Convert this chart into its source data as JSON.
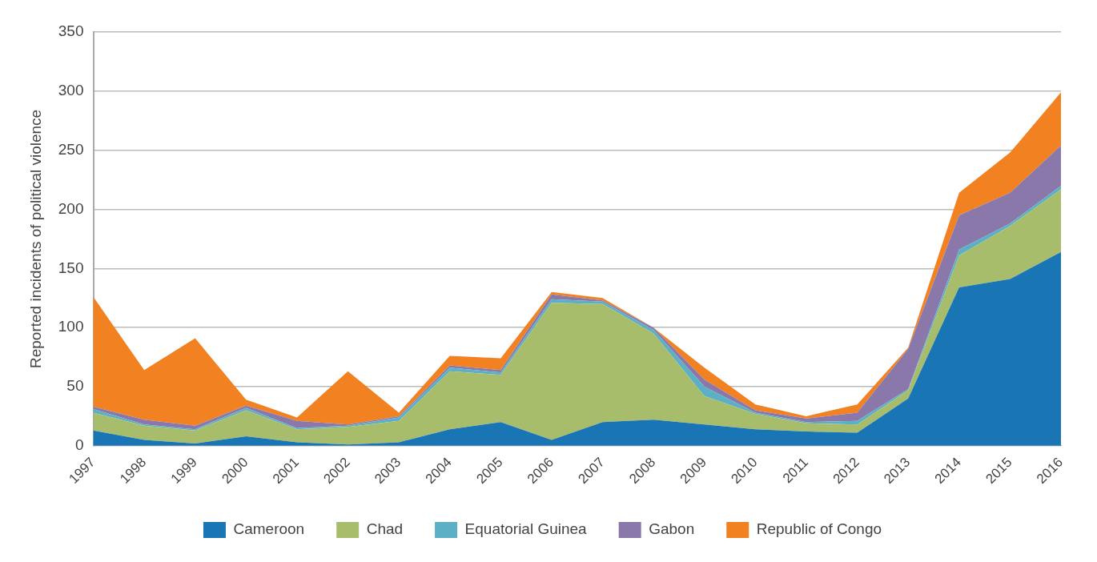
{
  "chart_data": {
    "type": "area",
    "stacked": true,
    "ylabel": "Reported incidents of political violence",
    "categories": [
      "1997",
      "1998",
      "1999",
      "2000",
      "2001",
      "2002",
      "2003",
      "2004",
      "2005",
      "2006",
      "2007",
      "2008",
      "2009",
      "2010",
      "2011",
      "2012",
      "2013",
      "2014",
      "2015",
      "2016"
    ],
    "series": [
      {
        "name": "Cameroon",
        "color": "#1a75b5",
        "values": [
          13,
          5,
          2,
          8,
          3,
          1,
          3,
          14,
          20,
          5,
          20,
          22,
          18,
          14,
          12,
          11,
          40,
          134,
          141,
          164
        ]
      },
      {
        "name": "Chad",
        "color": "#a8bd6c",
        "values": [
          15,
          12,
          11,
          22,
          11,
          15,
          18,
          49,
          40,
          116,
          100,
          73,
          24,
          13,
          7,
          7,
          7,
          27,
          45,
          53
        ]
      },
      {
        "name": "Equatorial Guinea",
        "color": "#5bb0c5",
        "values": [
          3,
          1,
          1,
          2,
          1,
          1,
          3,
          3,
          2,
          3,
          2,
          3,
          8,
          1,
          1,
          3,
          1,
          5,
          2,
          3
        ]
      },
      {
        "name": "Gabon",
        "color": "#8b78aa",
        "values": [
          2,
          4,
          3,
          2,
          6,
          1,
          1,
          2,
          2,
          4,
          1,
          2,
          6,
          2,
          3,
          7,
          34,
          29,
          26,
          34
        ]
      },
      {
        "name": "Republic of Congo",
        "color": "#f28221",
        "values": [
          93,
          42,
          74,
          5,
          3,
          45,
          3,
          8,
          10,
          2,
          2,
          0,
          10,
          5,
          2,
          7,
          1,
          19,
          34,
          45
        ]
      }
    ],
    "ylim": [
      0,
      350
    ],
    "yticks": [
      0,
      50,
      100,
      150,
      200,
      250,
      300,
      350
    ],
    "grid": "y",
    "legend": "bottom"
  }
}
